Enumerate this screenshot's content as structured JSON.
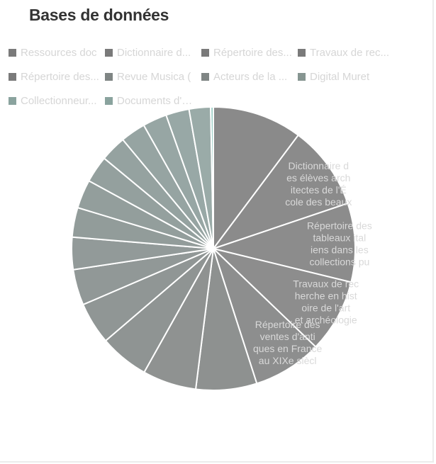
{
  "title": "Bases de données",
  "chart_data": {
    "type": "pie",
    "title": "Bases de données",
    "legend_position": "top",
    "legend": [
      {
        "label": "Ressources doc",
        "color": "#7a7a7a"
      },
      {
        "label": "Dictionnaire d...",
        "color": "#7a7a7a"
      },
      {
        "label": "Répertoire des...",
        "color": "#7a7a7a"
      },
      {
        "label": "Travaux de rec...",
        "color": "#7a7a7a"
      },
      {
        "label": "Répertoire des...",
        "color": "#7a7a7a"
      },
      {
        "label": "Revue Musica (",
        "color": "#7f8584"
      },
      {
        "label": "Acteurs de la ...",
        "color": "#7f8584"
      },
      {
        "label": "Digital Muret",
        "color": "#869591"
      },
      {
        "label": "Collectionneur...",
        "color": "#8aa39e"
      },
      {
        "label": "Documents d'ar...",
        "color": "#8aa39e"
      }
    ],
    "slices": [
      {
        "value": 10.0,
        "color": "#8a8a8a"
      },
      {
        "value": 9.4,
        "color": "#8b8b8b"
      },
      {
        "value": 8.8,
        "color": "#8c8c8c"
      },
      {
        "value": 8.2,
        "color": "#8d8d8d"
      },
      {
        "value": 7.7,
        "color": "#8d8e8e"
      },
      {
        "value": 6.8,
        "color": "#8e9190"
      },
      {
        "value": 6.0,
        "color": "#8f9291"
      },
      {
        "value": 5.5,
        "color": "#8f9493"
      },
      {
        "value": 4.7,
        "color": "#909695"
      },
      {
        "value": 4.0,
        "color": "#919897"
      },
      {
        "value": 3.6,
        "color": "#929a99"
      },
      {
        "value": 3.3,
        "color": "#929c9a"
      },
      {
        "value": 3.2,
        "color": "#939e9c"
      },
      {
        "value": 3.0,
        "color": "#94a09e"
      },
      {
        "value": 2.9,
        "color": "#95a2a0"
      },
      {
        "value": 2.8,
        "color": "#96a4a2"
      },
      {
        "value": 2.7,
        "color": "#97a6a4"
      },
      {
        "value": 2.6,
        "color": "#98a8a6"
      },
      {
        "value": 2.4,
        "color": "#9aaba8"
      },
      {
        "value": 0.3,
        "color": "#9ccfc6"
      }
    ],
    "data_labels": [
      {
        "slice": 1,
        "lines": [
          "Dictionnaire d",
          "es élèves arch",
          "itectes de l'É",
          "cole des beaux"
        ]
      },
      {
        "slice": 2,
        "lines": [
          "Répertoire des",
          "tableaux ital",
          "iens dans les",
          "collections pu"
        ]
      },
      {
        "slice": 3,
        "lines": [
          "Travaux de rec",
          "herche en hist",
          "oire de l'art",
          "et archéologie"
        ]
      },
      {
        "slice": 4,
        "lines": [
          "Répertoire des",
          "ventes d'anti",
          "ques en France",
          "au XIXe siècl"
        ]
      }
    ]
  }
}
